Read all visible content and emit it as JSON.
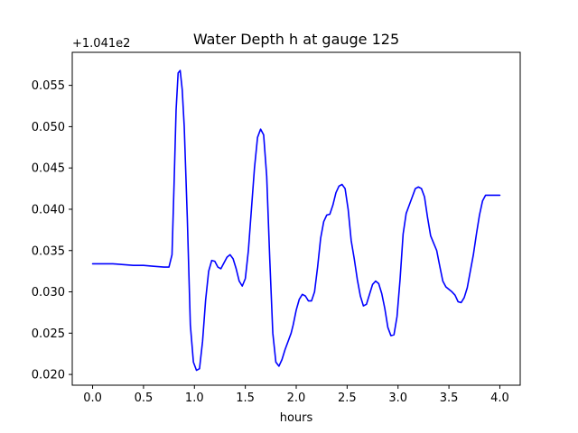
{
  "chart_data": {
    "type": "line",
    "title": "Water Depth h at gauge 125",
    "xlabel": "hours",
    "ylabel": "",
    "y_offset_label": "+1.041e2",
    "xlim": [
      -0.2,
      4.2
    ],
    "ylim": [
      0.0187,
      0.059
    ],
    "x_ticks": [
      0.0,
      0.5,
      1.0,
      1.5,
      2.0,
      2.5,
      3.0,
      3.5,
      4.0
    ],
    "x_tick_labels": [
      "0.0",
      "0.5",
      "1.0",
      "1.5",
      "2.0",
      "2.5",
      "3.0",
      "3.5",
      "4.0"
    ],
    "y_ticks": [
      0.02,
      0.025,
      0.03,
      0.035,
      0.04,
      0.045,
      0.05,
      0.055
    ],
    "y_tick_labels": [
      "0.020",
      "0.025",
      "0.030",
      "0.035",
      "0.040",
      "0.045",
      "0.050",
      "0.055"
    ],
    "grid": false,
    "series": [
      {
        "color": "#0000ff",
        "x": [
          0.0,
          0.1,
          0.2,
          0.3,
          0.4,
          0.5,
          0.6,
          0.7,
          0.75,
          0.78,
          0.8,
          0.82,
          0.84,
          0.86,
          0.88,
          0.9,
          0.93,
          0.96,
          0.99,
          1.02,
          1.05,
          1.08,
          1.11,
          1.14,
          1.17,
          1.2,
          1.23,
          1.26,
          1.29,
          1.32,
          1.35,
          1.38,
          1.41,
          1.44,
          1.47,
          1.5,
          1.53,
          1.56,
          1.59,
          1.62,
          1.65,
          1.68,
          1.71,
          1.74,
          1.77,
          1.8,
          1.83,
          1.86,
          1.89,
          1.92,
          1.95,
          1.97,
          1.98,
          2.0,
          2.03,
          2.06,
          2.09,
          2.12,
          2.15,
          2.18,
          2.21,
          2.24,
          2.27,
          2.3,
          2.33,
          2.36,
          2.39,
          2.42,
          2.45,
          2.48,
          2.51,
          2.54,
          2.57,
          2.6,
          2.63,
          2.66,
          2.69,
          2.72,
          2.75,
          2.78,
          2.81,
          2.84,
          2.87,
          2.9,
          2.93,
          2.96,
          2.99,
          3.02,
          3.05,
          3.08,
          3.11,
          3.14,
          3.17,
          3.2,
          3.23,
          3.26,
          3.29,
          3.32,
          3.35,
          3.38,
          3.41,
          3.44,
          3.47,
          3.5,
          3.53,
          3.56,
          3.59,
          3.62,
          3.65,
          3.68,
          3.71,
          3.74,
          3.77,
          3.8,
          3.83,
          3.86,
          3.89,
          3.92,
          3.95,
          3.98,
          4.0
        ],
        "y": [
          0.0334,
          0.0334,
          0.0334,
          0.0333,
          0.0332,
          0.0332,
          0.0331,
          0.033,
          0.033,
          0.0345,
          0.043,
          0.052,
          0.0565,
          0.0568,
          0.0545,
          0.05,
          0.039,
          0.026,
          0.0215,
          0.0205,
          0.0207,
          0.024,
          0.029,
          0.0325,
          0.0338,
          0.0337,
          0.033,
          0.0328,
          0.0335,
          0.0342,
          0.0345,
          0.034,
          0.0328,
          0.0313,
          0.0307,
          0.0316,
          0.035,
          0.04,
          0.045,
          0.0487,
          0.0497,
          0.049,
          0.044,
          0.034,
          0.025,
          0.0215,
          0.021,
          0.0218,
          0.023,
          0.024,
          0.025,
          0.026,
          0.0266,
          0.0278,
          0.0291,
          0.0297,
          0.0295,
          0.0289,
          0.0289,
          0.03,
          0.033,
          0.0365,
          0.0385,
          0.0393,
          0.0394,
          0.0405,
          0.042,
          0.0428,
          0.043,
          0.0425,
          0.04,
          0.0362,
          0.034,
          0.0315,
          0.0295,
          0.0283,
          0.0285,
          0.0297,
          0.0309,
          0.0313,
          0.031,
          0.0298,
          0.028,
          0.0257,
          0.0247,
          0.0248,
          0.027,
          0.0315,
          0.037,
          0.0395,
          0.0405,
          0.0415,
          0.0425,
          0.0427,
          0.0425,
          0.0415,
          0.039,
          0.0368,
          0.0359,
          0.035,
          0.0331,
          0.0313,
          0.0306,
          0.0303,
          0.03,
          0.0296,
          0.0288,
          0.0287,
          0.0293,
          0.0305,
          0.0325,
          0.0345,
          0.037,
          0.0393,
          0.041,
          0.0417,
          0.0417,
          0.0417,
          0.0417,
          0.0417,
          0.0417
        ]
      }
    ]
  }
}
